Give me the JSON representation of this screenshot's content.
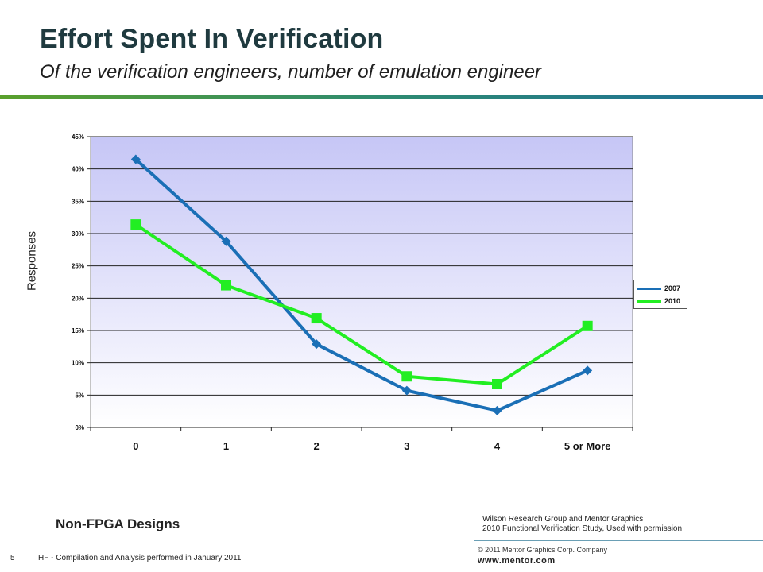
{
  "slide": {
    "title": "Effort Spent In Verification",
    "subtitle": "Of the verification engineers, number of emulation engineer",
    "caption": "Non-FPGA Designs",
    "source_line1": "Wilson Research Group and Mentor Graphics",
    "source_line2": "2010 Functional Verification Study,  Used with permission",
    "copyright": "© 2011 Mentor Graphics Corp. Company",
    "website": "www.mentor.com",
    "page_number": "5",
    "footer_note": "HF - Compilation and Analysis performed in January 2011"
  },
  "chart_data": {
    "type": "line",
    "title": "",
    "xlabel": "",
    "ylabel": "Responses",
    "categories": [
      "0",
      "1",
      "2",
      "3",
      "4",
      "5 or More"
    ],
    "y_ticks": [
      "0%",
      "5%",
      "10%",
      "15%",
      "20%",
      "25%",
      "30%",
      "35%",
      "40%",
      "45%"
    ],
    "ylim": [
      0,
      45
    ],
    "grid": true,
    "legend_position": "right",
    "series": [
      {
        "name": "2007",
        "color": "#1a6fb6",
        "marker": "diamond",
        "values": [
          41.5,
          28.8,
          12.9,
          5.7,
          2.6,
          8.8
        ]
      },
      {
        "name": "2010",
        "color": "#22ee22",
        "marker": "square",
        "values": [
          31.4,
          22.0,
          16.9,
          7.9,
          6.7,
          15.7
        ]
      }
    ]
  }
}
